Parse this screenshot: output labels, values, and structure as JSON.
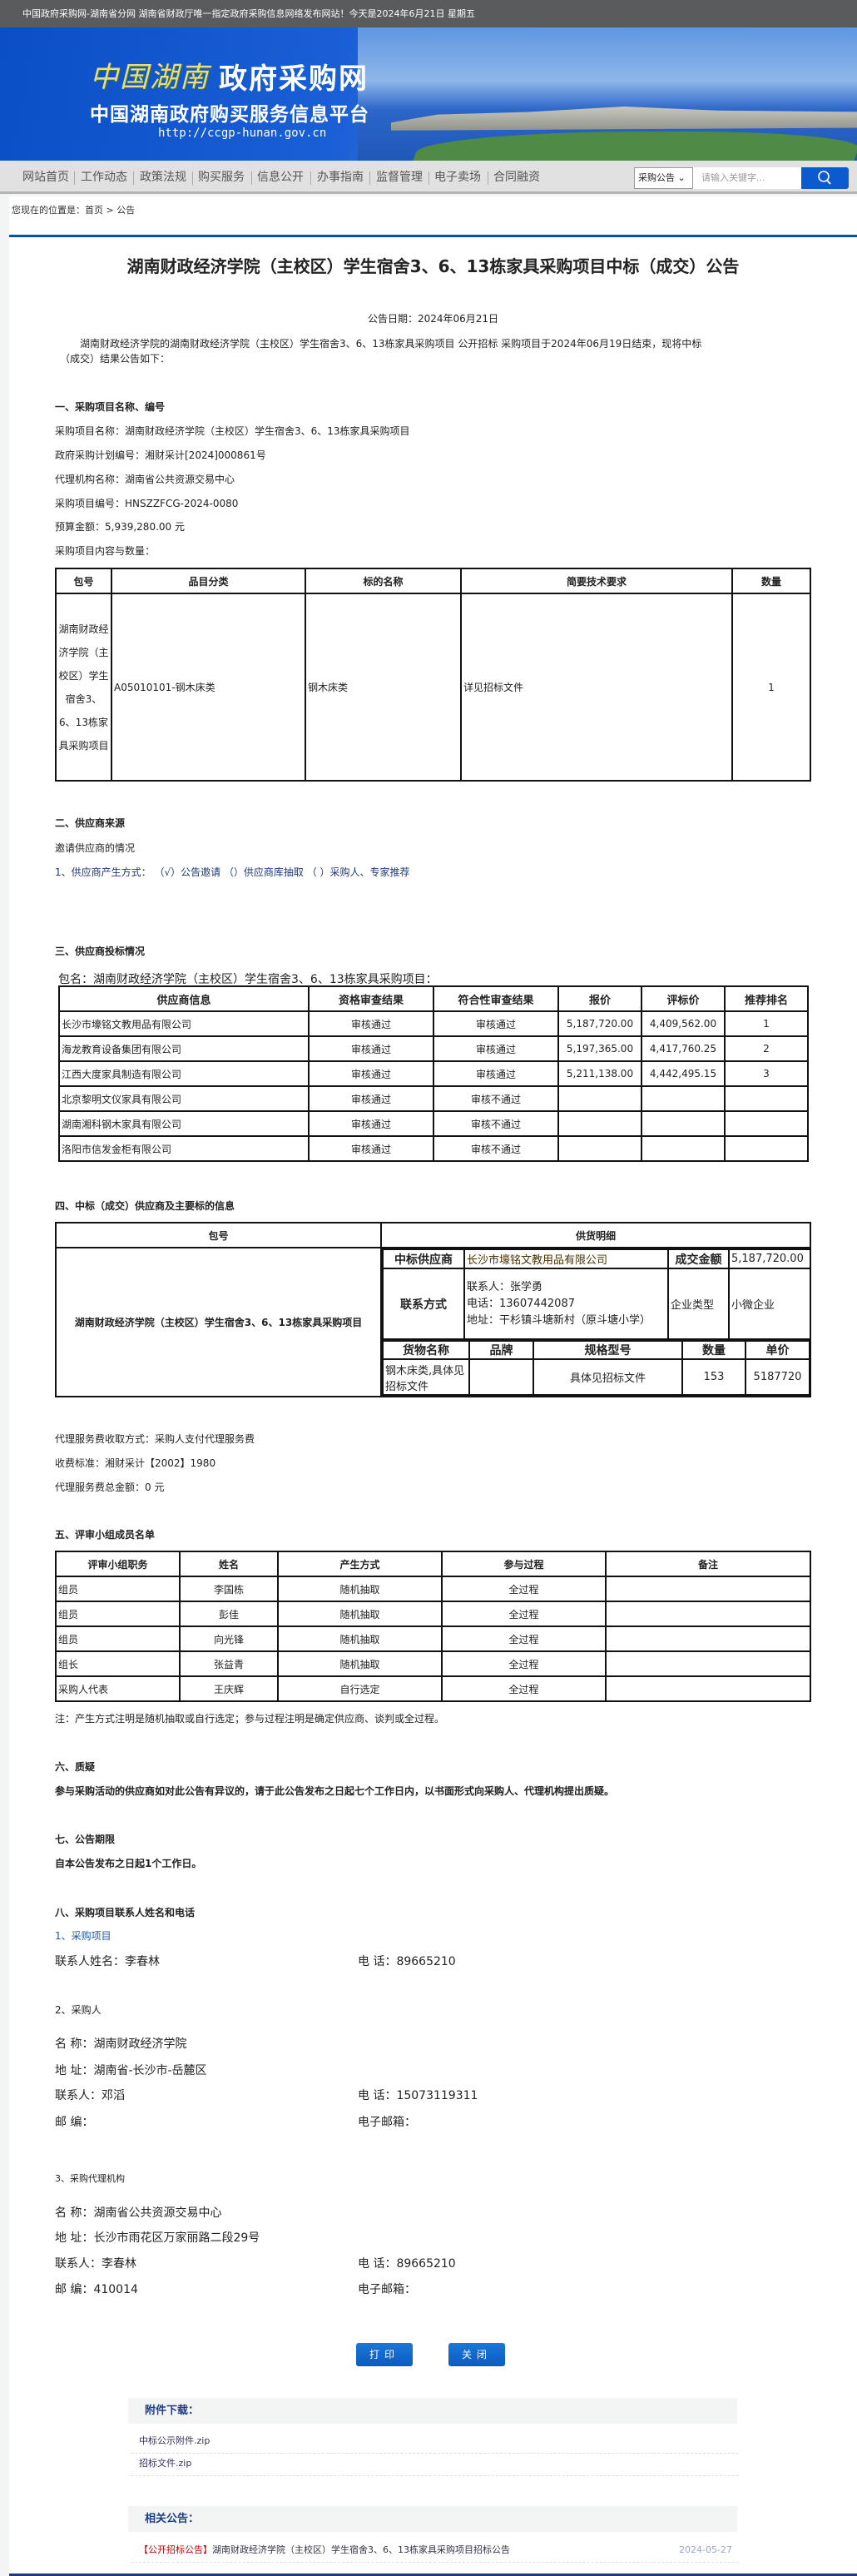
{
  "topbar": {
    "text": "中国政府采购网-湖南省分网  湖南省财政厅唯一指定政府采购信息网络发布网站！今天是2024年6月21日 星期五"
  },
  "banner": {
    "logo_calligraphy": "中国湖南",
    "title": "政府采购网",
    "subtitle": "中国湖南政府购买服务信息平台",
    "url": "http://ccgp-hunan.gov.cn"
  },
  "nav": {
    "items": [
      "网站首页",
      "工作动态",
      "政策法规",
      "购买服务",
      "信息公开",
      "办事指南",
      "监督管理",
      "电子卖场",
      "合同融资"
    ],
    "search_select": "采购公告",
    "search_placeholder": "请输入关键字...",
    "search_icon": "search-icon"
  },
  "breadcrumb": {
    "label": "您现在的位置是：",
    "home": "首页",
    "sep": ">",
    "current": "公告"
  },
  "notice": {
    "title": "湖南财政经济学院（主校区）学生宿舍3、6、13栋家具采购项目中标（成交）公告",
    "date": "公告日期：2024年06月21日",
    "intro1": "湖南财政经济学院的湖南财政经济学院（主校区）学生宿舍3、6、13栋家具采购项目 公开招标 采购项目于2024年06月19日结束，现将中标",
    "intro2": "（成交）结果公告如下：",
    "s1": {
      "heading": "一、采购项目名称、编号",
      "lines": [
        "采购项目名称：湖南财政经济学院（主校区）学生宿舍3、6、13栋家具采购项目",
        "政府采购计划编号：湘财采计[2024]000861号",
        "代理机构名称：湖南省公共资源交易中心",
        "采购项目编号：HNSZZFCG-2024-0080",
        "预算金额：5,939,280.00  元",
        "采购项目内容与数量："
      ],
      "table": {
        "headers": [
          "包号",
          "品目分类",
          "标的名称",
          "简要技术要求",
          "数量"
        ],
        "row": [
          "湖南财政经济学院（主校区）学生宿舍3、6、13栋家具采购项目",
          "A05010101-钢木床类",
          "钢木床类",
          "详见招标文件",
          "1"
        ]
      }
    },
    "s2": {
      "heading": "二、供应商来源",
      "l1": "邀请供应商的情况",
      "l2": "1、供应商产生方式：  （√）公告邀请 （）供应商库抽取 （ ）采购人、专家推荐"
    },
    "s3": {
      "heading": "三、供应商投标情况",
      "package": "包名：湖南财政经济学院（主校区）学生宿舍3、6、13栋家具采购项目：",
      "headers": [
        "供应商信息",
        "资格审查结果",
        "符合性审查结果",
        "报价",
        "评标价",
        "推荐排名"
      ],
      "rows": [
        [
          "长沙市壕铭文教用品有限公司",
          "审核通过",
          "审核通过",
          "5,187,720.00",
          "4,409,562.00",
          "1"
        ],
        [
          "海龙教育设备集团有限公司",
          "审核通过",
          "审核通过",
          "5,197,365.00",
          "4,417,760.25",
          "2"
        ],
        [
          "江西大度家具制造有限公司",
          "审核通过",
          "审核通过",
          "5,211,138.00",
          "4,442,495.15",
          "3"
        ],
        [
          "北京黎明文仪家具有限公司",
          "审核通过",
          "审核不通过",
          "",
          "",
          ""
        ],
        [
          "湖南湘科钢木家具有限公司",
          "审核通过",
          "审核不通过",
          "",
          "",
          ""
        ],
        [
          "洛阳市信发金柜有限公司",
          "审核通过",
          "审核不通过",
          "",
          "",
          ""
        ]
      ]
    },
    "s4": {
      "heading": "四、中标（成交）供应商及主要标的信息",
      "h_pkg": "包号",
      "h_detail": "供货明细",
      "pkg": "湖南财政经济学院（主校区）学生宿舍3、6、13栋家具采购项目",
      "l_supplier": "中标供应商",
      "supplier": "长沙市壕铭文教用品有限公司",
      "l_amount": "成交金额",
      "amount": "5,187,720.00",
      "l_contact": "联系方式",
      "contact_person": "联系人：张学勇",
      "phone": "电话：13607442087",
      "address": "地址：干杉镇斗塘新村（原斗塘小学）",
      "l_type": "企业类型",
      "type": "小微企业",
      "goods_headers": [
        "货物名称",
        "品牌",
        "规格型号",
        "数量",
        "单价"
      ],
      "goods": [
        "钢木床类,具体见招标文件",
        "",
        "具体见招标文件",
        "153",
        "5187720"
      ],
      "fee_method": "代理服务费收取方式：采购人支付代理服务费",
      "fee_std": "收费标准：湘财采计【2002】1980",
      "fee_total": "代理服务费总金额：0 元"
    },
    "s5": {
      "heading": "五、评审小组成员名单",
      "headers": [
        "评审小组职务",
        "姓名",
        "产生方式",
        "参与过程",
        "备注"
      ],
      "rows": [
        [
          "组员",
          "李国栋",
          "随机抽取",
          "全过程",
          ""
        ],
        [
          "组员",
          "彭佳",
          "随机抽取",
          "全过程",
          ""
        ],
        [
          "组员",
          "向光锋",
          "随机抽取",
          "全过程",
          ""
        ],
        [
          "组长",
          "张益青",
          "随机抽取",
          "全过程",
          ""
        ],
        [
          "采购人代表",
          "王庆辉",
          "自行选定",
          "全过程",
          ""
        ]
      ],
      "note": "注：产生方式注明是随机抽取或自行选定；参与过程注明是确定供应商、谈判或全过程。"
    },
    "s6": {
      "heading": "六、质疑",
      "text": "参与采购活动的供应商如对此公告有异议的，请于此公告发布之日起七个工作日内，以书面形式向采购人、代理机构提出质疑。"
    },
    "s7": {
      "heading": "七、公告期限",
      "text": "自本公告发布之日起1个工作日。"
    },
    "s8": {
      "heading": "八、采购项目联系人姓名和电话",
      "p1": {
        "title": "1、采购项目",
        "name": "联系人姓名：李春林",
        "phone": "电 话：89665210"
      },
      "p2": {
        "title": "2、采购人",
        "name": "名 称：湖南财政经济学院",
        "addr": "地 址：湖南省-长沙市-岳麓区",
        "contact": "联系人：邓滔",
        "phone": "电 话：15073119311",
        "zip": "邮 编：",
        "email": "电子邮箱："
      },
      "p3": {
        "title": "3、采购代理机构",
        "name": "名 称：湖南省公共资源交易中心",
        "addr": "地 址：长沙市雨花区万家丽路二段29号",
        "contact": "联系人：李春林",
        "phone": "电 话：89665210",
        "zip": "邮 编：410014",
        "email": "电子邮箱："
      }
    }
  },
  "buttons": {
    "print": "打印",
    "close": "关闭"
  },
  "attachments": {
    "heading": "附件下载：",
    "files": [
      "中标公示附件.zip",
      "招标文件.zip"
    ]
  },
  "related": {
    "heading": "相关公告：",
    "items": [
      {
        "tag": "【公开招标公告】",
        "title": "湖南财政经济学院（主校区）学生宿舍3、6、13栋家具采购项目招标公告",
        "date": "2024-05-27"
      }
    ]
  },
  "colors": {
    "brand_blue": "#0c5ad0",
    "tag_red": "#c00000"
  }
}
